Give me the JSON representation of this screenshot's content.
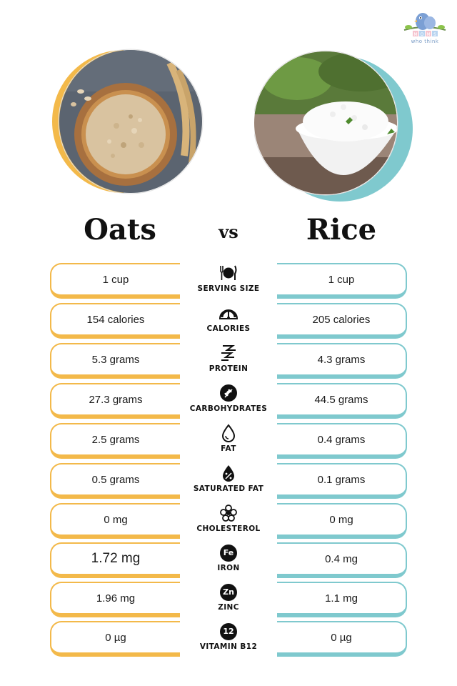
{
  "brand": {
    "logo_letters": "MOMS",
    "logo_tagline": "who think"
  },
  "colors": {
    "oats_accent": "#f3b94a",
    "rice_accent": "#7fc9ce"
  },
  "header": {
    "left_title": "Oats",
    "vs": "vs",
    "right_title": "Rice"
  },
  "rows": [
    {
      "label": "SERVING SIZE",
      "icon": "cutlery-plate-icon",
      "oats": "1 cup",
      "rice": "1 cup"
    },
    {
      "label": "CALORIES",
      "icon": "gauge-icon",
      "oats": "154 calories",
      "rice": "205 calories"
    },
    {
      "label": "PROTEIN",
      "icon": "protein-strand-icon",
      "oats": "5.3 grams",
      "rice": "4.3 grams"
    },
    {
      "label": "CARBOHYDRATES",
      "icon": "wheat-icon",
      "oats": "27.3 grams",
      "rice": "44.5 grams"
    },
    {
      "label": "FAT",
      "icon": "drop-icon",
      "oats": "2.5 grams",
      "rice": "0.4 grams"
    },
    {
      "label": "SATURATED FAT",
      "icon": "percent-drop-icon",
      "oats": "0.5 grams",
      "rice": "0.1 grams"
    },
    {
      "label": "CHOLESTEROL",
      "icon": "molecule-icon",
      "oats": "0 mg",
      "rice": "0 mg"
    },
    {
      "label": "IRON",
      "badge": "Fe",
      "oats": "1.72 mg",
      "rice": "0.4 mg"
    },
    {
      "label": "ZINC",
      "badge": "Zn",
      "oats": "1.96 mg",
      "rice": "1.1 mg"
    },
    {
      "label": "VITAMIN B12",
      "badge": "12",
      "oats": "0 µg",
      "rice": "0 µg"
    }
  ]
}
